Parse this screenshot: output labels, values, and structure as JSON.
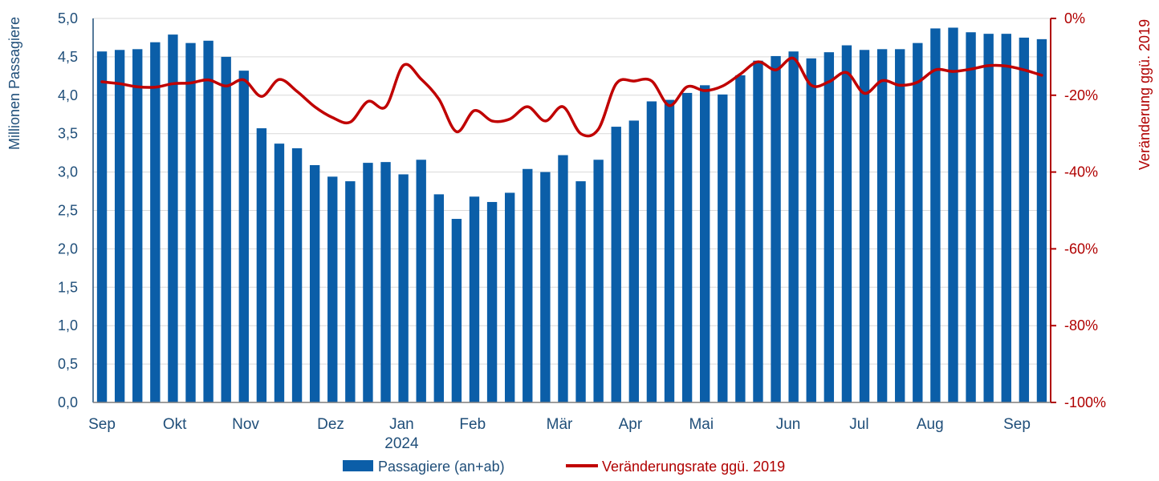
{
  "chart_data": {
    "type": "bar",
    "colors": {
      "bars": "#0b5ea8",
      "line": "#c00000",
      "grid": "#d9d9d9",
      "left_axis": "#1f4e79",
      "right_axis": "#b00000"
    },
    "y_left": {
      "label": "Millionen Passagiere",
      "min": 0,
      "max": 5,
      "ticks": [
        "0,0",
        "0,5",
        "1,0",
        "1,5",
        "2,0",
        "2,5",
        "3,0",
        "3,5",
        "4,0",
        "4,5",
        "5,0"
      ]
    },
    "y_right": {
      "label": "Veränderung ggü. 2019",
      "min": -100,
      "max": 0,
      "ticks": [
        "-100%",
        "-80%",
        "-60%",
        "-40%",
        "-20%",
        "0%"
      ]
    },
    "x_labels": [
      {
        "label": "Sep",
        "index": 0.5
      },
      {
        "label": "Okt",
        "index": 4.6
      },
      {
        "label": "Nov",
        "index": 8.6
      },
      {
        "label": "Dez",
        "index": 13.4
      },
      {
        "label": "Jan",
        "index": 17.4
      },
      {
        "label": "2024",
        "index": 17.4,
        "line": 2
      },
      {
        "label": "Feb",
        "index": 21.4
      },
      {
        "label": "Mär",
        "index": 26.3
      },
      {
        "label": "Apr",
        "index": 30.3
      },
      {
        "label": "Mai",
        "index": 34.3
      },
      {
        "label": "Jun",
        "index": 39.2
      },
      {
        "label": "Jul",
        "index": 43.2
      },
      {
        "label": "Aug",
        "index": 47.2
      },
      {
        "label": "Sep",
        "index": 52.1
      }
    ],
    "bar_series": {
      "name": "Passagiere (an+ab)",
      "values": [
        4.57,
        4.59,
        4.6,
        4.69,
        4.79,
        4.68,
        4.71,
        4.5,
        4.32,
        3.57,
        3.37,
        3.31,
        3.09,
        2.94,
        2.88,
        3.12,
        3.13,
        2.97,
        3.16,
        2.71,
        2.39,
        2.68,
        2.61,
        2.73,
        3.04,
        3.0,
        3.22,
        2.88,
        3.16,
        3.59,
        3.67,
        3.92,
        3.94,
        4.03,
        4.13,
        4.01,
        4.26,
        4.45,
        4.51,
        4.57,
        4.48,
        4.56,
        4.65,
        4.59,
        4.6,
        4.6,
        4.68,
        4.87,
        4.88,
        4.82,
        4.8,
        4.8,
        4.75,
        4.73
      ]
    },
    "line_series": {
      "name": "Veränderungsrate ggü. 2019",
      "values": [
        -16.5,
        -17,
        -17.8,
        -17.9,
        -17,
        -16.8,
        -16,
        -17.6,
        -16,
        -20.3,
        -15.9,
        -19,
        -23,
        -25.8,
        -27,
        -21.6,
        -23,
        -12.2,
        -15.8,
        -21,
        -29.5,
        -24,
        -26.7,
        -26.2,
        -23,
        -26.7,
        -23,
        -30,
        -28.8,
        -17,
        -16.3,
        -16.3,
        -22.7,
        -17.8,
        -18.8,
        -17.6,
        -14.5,
        -11.3,
        -13.4,
        -10.4,
        -17.4,
        -16.5,
        -14.1,
        -19.5,
        -16.2,
        -17.4,
        -16.6,
        -13.4,
        -13.8,
        -13.2,
        -12.3,
        -12.4,
        -13.4,
        -14.8
      ]
    },
    "legend": {
      "placement": "bottom-center"
    },
    "grid": true
  }
}
